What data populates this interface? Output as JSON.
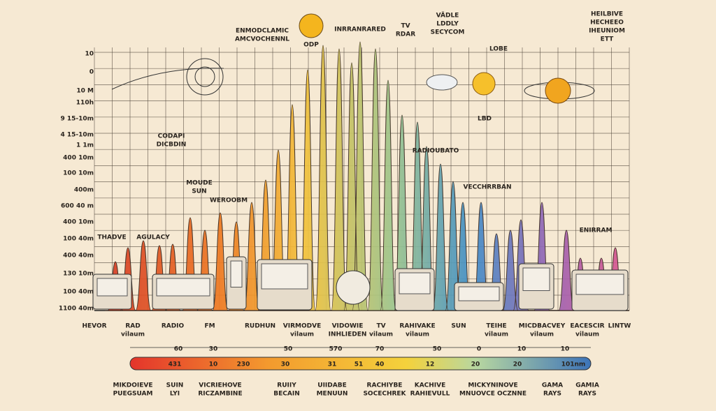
{
  "top_labels": [
    [
      "ENMODCLAMIC",
      "AMCVOCHENNL"
    ],
    [
      "INRRANRARED"
    ],
    [
      "TV",
      "RDAR"
    ],
    [
      "VÄDLE",
      "LDDLY",
      "SECYCOM"
    ],
    [
      "HEILBIVE",
      "HECHEEO",
      "IHEUNIOM",
      "ETT"
    ],
    [
      "ODP"
    ],
    [
      "LOBE"
    ],
    [
      "LBD"
    ]
  ],
  "mid_labels": [
    [
      "CODAPI",
      "DICBDIN"
    ],
    [
      "MOUDE",
      "SUN"
    ],
    [
      "WEROOBM"
    ],
    [
      "RADIOUBATO"
    ],
    [
      "VECCHRRBAN"
    ],
    [
      "ENIRRAM"
    ],
    [
      "THADVE"
    ],
    [
      "AGULACY"
    ]
  ],
  "left_axis_labels": [
    "10",
    "0",
    "10 M",
    "110h",
    "9 15-10m",
    "4 15-10m",
    "1 1m",
    "400 10m",
    "100 10m",
    "400m",
    "600 40 m",
    "400 10m",
    "100 40m",
    "400 40m",
    "130 10m",
    "100 40m",
    "1100 40m"
  ],
  "category_labels": [
    [
      "HEVOR"
    ],
    [
      "RAD",
      "vilaum"
    ],
    [
      "RADIO"
    ],
    [
      "FM"
    ],
    [
      "RUDHUN"
    ],
    [
      "VIRMODVE",
      "vilaum"
    ],
    [
      "VIDOWIE",
      "INHLIEDEN"
    ],
    [
      "TV",
      "vilaum"
    ],
    [
      "RAHIVAKE",
      "vilaum"
    ],
    [
      "SUN"
    ],
    [
      "TEIHE",
      "vilaum"
    ],
    [
      "MICDBACVEY",
      "vilaum"
    ],
    [
      "EACESCIR",
      "vilaum"
    ],
    [
      "LINTW"
    ]
  ],
  "scale_top_numbers": [
    "60",
    "30",
    "50",
    "570",
    "70",
    "50",
    "0",
    "10",
    "10"
  ],
  "scale_bar_numbers": [
    "431",
    "10",
    "230",
    "30",
    "31",
    "51",
    "40",
    "12",
    "20",
    "20",
    "101nm"
  ],
  "bottom_labels": [
    [
      "MIKDOIEVE",
      "PUEGSUAM"
    ],
    [
      "SUIN",
      "LYI"
    ],
    [
      "VICRIEHOVE",
      "RICZAMBINE"
    ],
    [
      "RUIIY",
      "BECAIN"
    ],
    [
      "UIIDABE",
      "MENUUN"
    ],
    [
      "RACHIYBE",
      "SOCECHREK"
    ],
    [
      "KACHIVE",
      "RAHIEVULL"
    ],
    [
      "MICKYNINOVE",
      "MNUOVCE OCZNNE"
    ],
    [
      "GAMA",
      "RAYS"
    ],
    [
      "GAMIA",
      "RAYS"
    ]
  ]
}
